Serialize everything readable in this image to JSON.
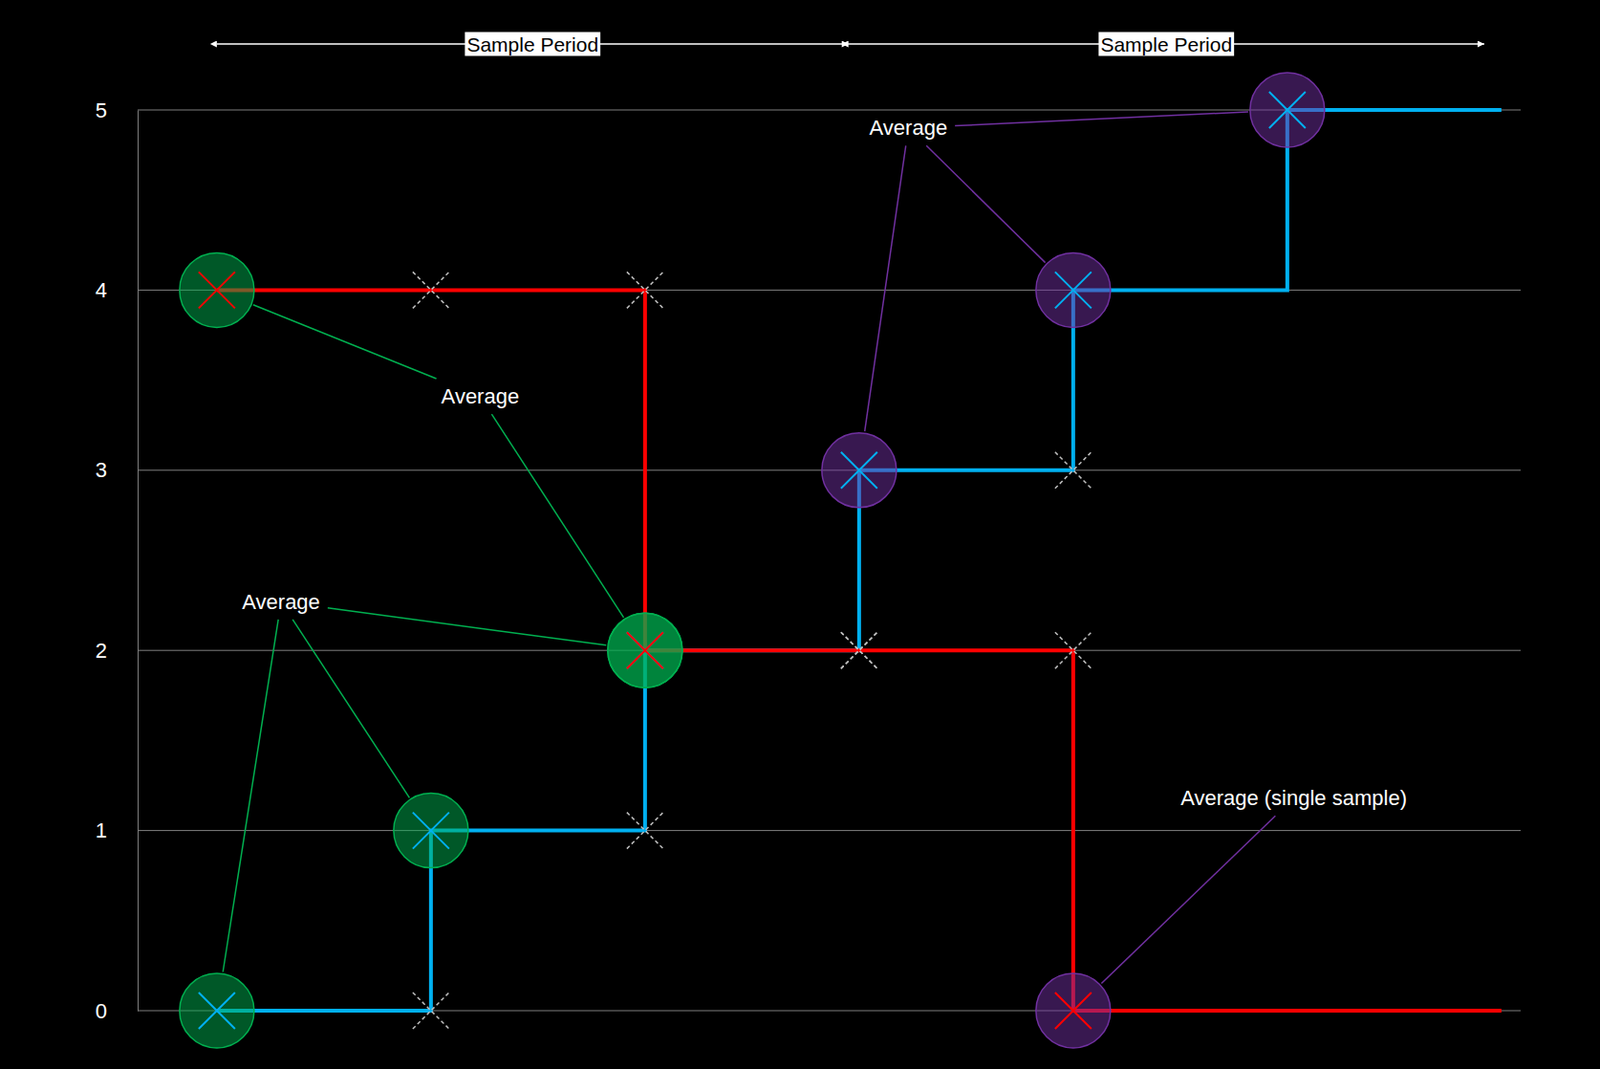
{
  "chart_data": {
    "type": "line",
    "x": [
      0,
      1,
      2,
      3,
      4,
      5,
      6
    ],
    "xlim": [
      -0.37,
      6.09
    ],
    "ylim": [
      0,
      5
    ],
    "yticks": [
      0,
      1,
      2,
      3,
      4,
      5
    ],
    "grid": true,
    "tick_labels": "y",
    "series": [
      {
        "color": "#00b0f0",
        "line_style": "step",
        "values": [
          0,
          1,
          2,
          3,
          4,
          5,
          5
        ],
        "average_points": [
          0,
          1,
          2,
          3,
          4,
          5
        ],
        "sample_marks": [
          [
            1,
            0
          ],
          [
            2,
            1
          ],
          [
            3,
            2
          ],
          [
            4,
            3
          ]
        ]
      },
      {
        "color": "#ff0000",
        "line_style": "step",
        "values": [
          4,
          4,
          2,
          2,
          0,
          0,
          0
        ],
        "average_points": [
          0,
          2,
          4
        ],
        "sample_marks": [
          [
            1,
            4
          ],
          [
            2,
            4
          ],
          [
            3,
            2
          ],
          [
            4,
            2
          ]
        ]
      }
    ],
    "periods": [
      {
        "label": "Sample Period",
        "start": 0,
        "end": 2.95
      },
      {
        "label": "Sample Period",
        "start": 2.95,
        "end": 5.92
      }
    ],
    "annotations": [
      {
        "text": "Average",
        "x": 1.23,
        "y": 3.41,
        "color": "#00b050",
        "points": [
          [
            0,
            4
          ],
          [
            2,
            2
          ]
        ]
      },
      {
        "text": "Average",
        "x": 0.3,
        "y": 2.27,
        "color": "#00b050",
        "points": [
          [
            0,
            0
          ],
          [
            1,
            1
          ],
          [
            2,
            2
          ]
        ]
      },
      {
        "text": "Average",
        "x": 3.23,
        "y": 4.9,
        "color": "#7030a0",
        "points": [
          [
            3,
            3
          ],
          [
            4,
            4
          ],
          [
            5,
            5
          ]
        ]
      },
      {
        "text": "Average (single sample)",
        "x": 5.03,
        "y": 1.18,
        "color": "#7030a0",
        "points": [
          [
            4,
            0
          ]
        ]
      }
    ]
  }
}
